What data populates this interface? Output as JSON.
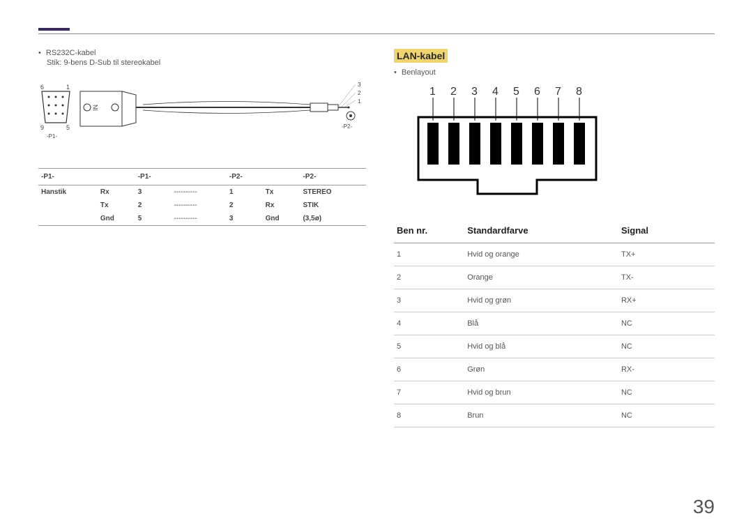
{
  "page_number": "39",
  "left": {
    "bullet": "RS232C-kabel",
    "sub": "Stik: 9-bens D-Sub til stereokabel",
    "diagram": {
      "pins_left": [
        "6",
        "1",
        "9",
        "5"
      ],
      "label_p1": "-P1-",
      "label_p2": "-P2-",
      "label_in": "IN",
      "pins_right": [
        "3",
        "2",
        "1"
      ]
    },
    "table": {
      "headers": [
        "-P1-",
        "-P1-",
        "",
        "",
        "-P2-",
        "",
        "-P2-"
      ],
      "rows": [
        [
          "Hanstik",
          "Rx",
          "3",
          "----------",
          "1",
          "Tx",
          "STEREO"
        ],
        [
          "",
          "Tx",
          "2",
          "----------",
          "2",
          "Rx",
          "STIK"
        ],
        [
          "",
          "Gnd",
          "5",
          "----------",
          "3",
          "Gnd",
          "(3,5ø)"
        ]
      ]
    }
  },
  "right": {
    "title": "LAN-kabel",
    "bullet": "Benlayout",
    "pin_numbers": [
      "1",
      "2",
      "3",
      "4",
      "5",
      "6",
      "7",
      "8"
    ],
    "table": {
      "headers": [
        "Ben nr.",
        "Standardfarve",
        "Signal"
      ],
      "rows": [
        [
          "1",
          "Hvid og orange",
          "TX+"
        ],
        [
          "2",
          "Orange",
          "TX-"
        ],
        [
          "3",
          "Hvid og grøn",
          "RX+"
        ],
        [
          "4",
          "Blå",
          "NC"
        ],
        [
          "5",
          "Hvid og blå",
          "NC"
        ],
        [
          "6",
          "Grøn",
          "RX-"
        ],
        [
          "7",
          "Hvid og brun",
          "NC"
        ],
        [
          "8",
          "Brun",
          "NC"
        ]
      ]
    }
  }
}
